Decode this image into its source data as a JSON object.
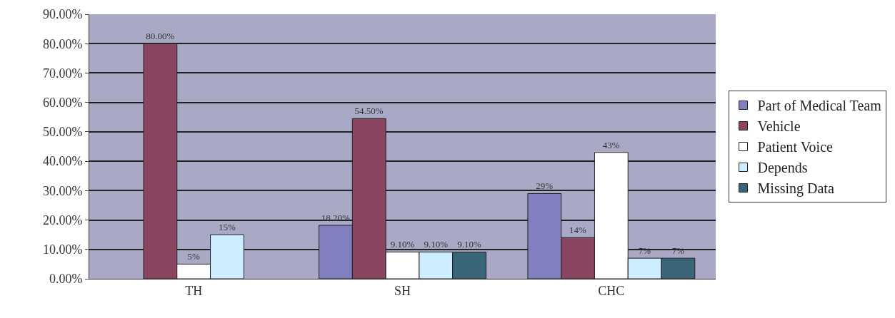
{
  "chart_data": {
    "type": "bar",
    "categories": [
      "TH",
      "SH",
      "CHC"
    ],
    "series": [
      {
        "name": "Part of Medical Team",
        "color": "#8080c0",
        "values": [
          null,
          18.2,
          29
        ],
        "value_labels": [
          null,
          "18.20%",
          "29%"
        ]
      },
      {
        "name": "Vehicle",
        "color": "#8a4560",
        "values": [
          80,
          54.5,
          14
        ],
        "value_labels": [
          "80.00%",
          "54.50%",
          "14%"
        ]
      },
      {
        "name": "Patient Voice",
        "color": "#ffffff",
        "values": [
          5,
          9.1,
          43
        ],
        "value_labels": [
          "5%",
          "9.10%",
          "43%"
        ]
      },
      {
        "name": "Depends",
        "color": "#cceeff",
        "values": [
          15,
          9.1,
          7
        ],
        "value_labels": [
          "15%",
          "9.10%",
          "7%"
        ]
      },
      {
        "name": "Missing Data",
        "color": "#3a6478",
        "values": [
          null,
          9.1,
          7
        ],
        "value_labels": [
          null,
          "9.10%",
          "7%"
        ]
      }
    ],
    "ylim": [
      0,
      90
    ],
    "yticks": [
      {
        "value": 0,
        "label": "0.00%"
      },
      {
        "value": 10,
        "label": "10.00%"
      },
      {
        "value": 20,
        "label": "20.00%"
      },
      {
        "value": 30,
        "label": "30.00%"
      },
      {
        "value": 40,
        "label": "40.00%"
      },
      {
        "value": 50,
        "label": "50.00%"
      },
      {
        "value": 60,
        "label": "60.00%"
      },
      {
        "value": 70,
        "label": "70.00%"
      },
      {
        "value": 80,
        "label": "80.00%"
      },
      {
        "value": 90,
        "label": "90.00%"
      }
    ],
    "grid": "y",
    "legend": "right"
  }
}
